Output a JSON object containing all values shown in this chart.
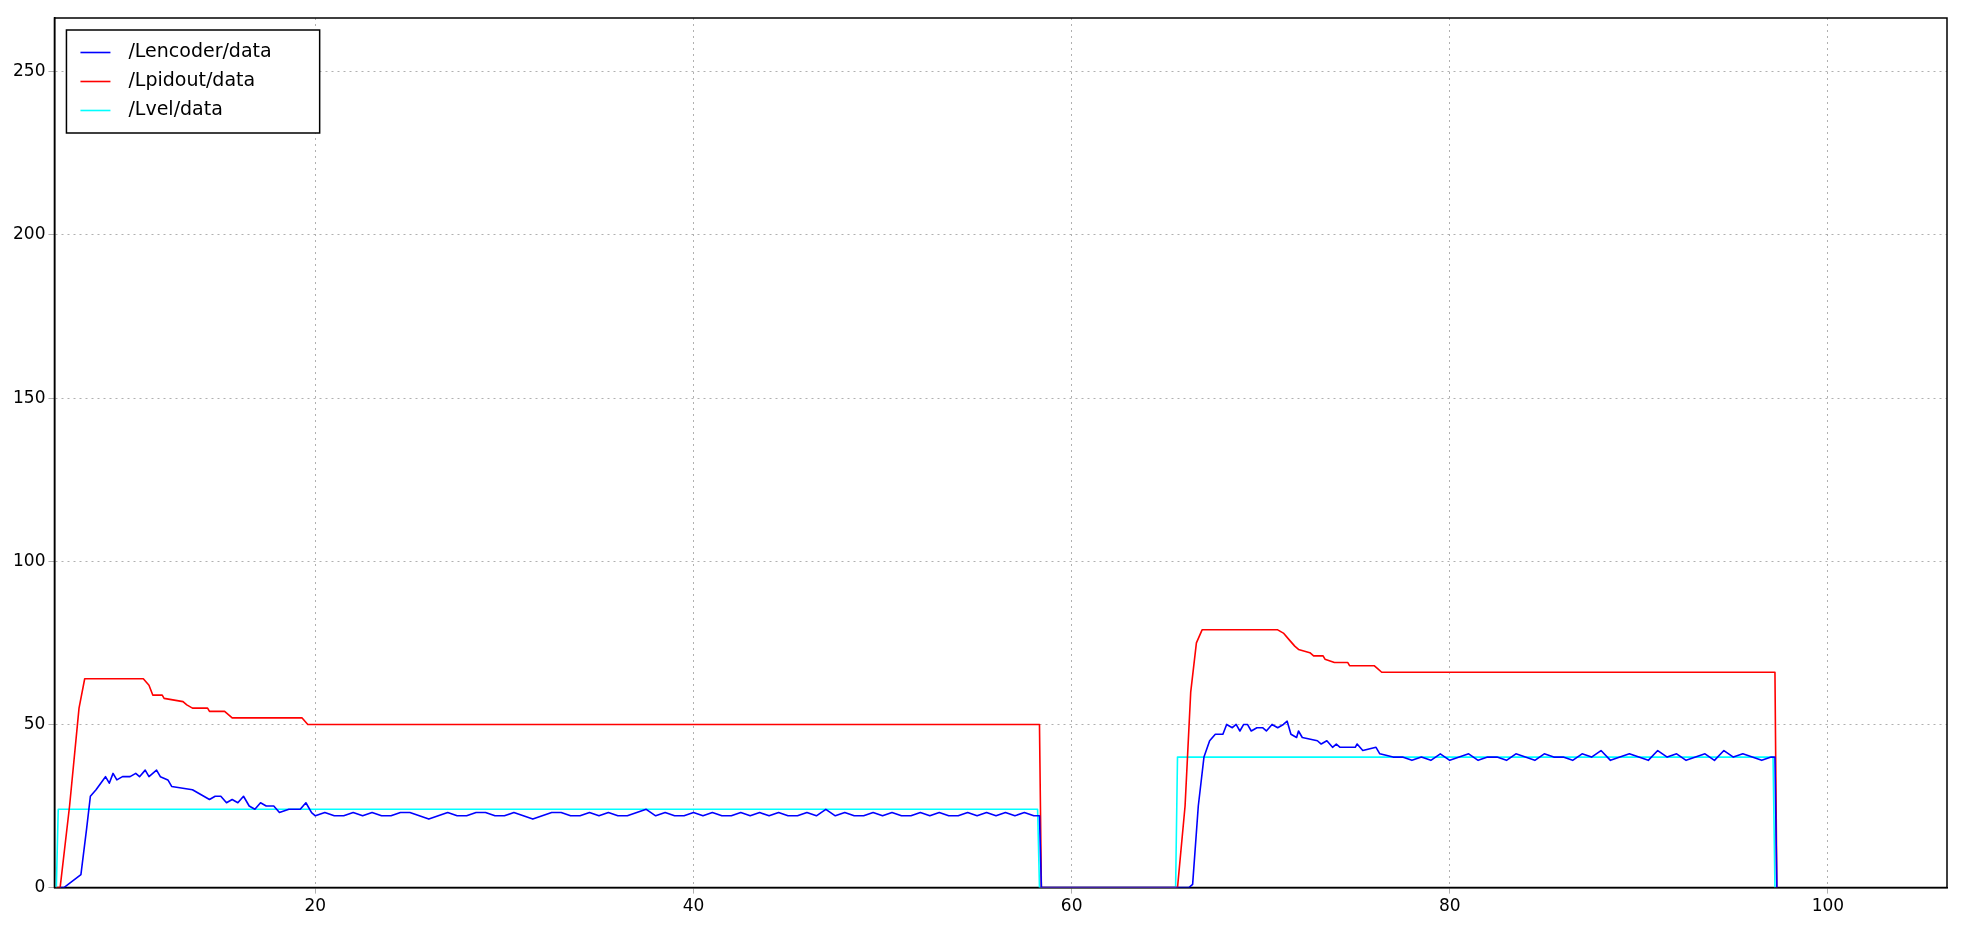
{
  "chart_data": {
    "type": "line",
    "xlim": [
      6.2,
      106.3
    ],
    "ylim": [
      0,
      266.5
    ],
    "xticks": [
      20,
      40,
      60,
      80,
      100
    ],
    "yticks": [
      0,
      50,
      100,
      150,
      200,
      250
    ],
    "grid": true,
    "legend": "top left",
    "series": [
      {
        "name": "/Lencoder/data",
        "color": "#0000ff",
        "x": [
          6.5,
          6.7,
          7.6,
          7.9,
          8.1,
          8.4,
          8.9,
          9.1,
          9.3,
          9.5,
          9.8,
          10.2,
          10.5,
          10.7,
          11.0,
          11.2,
          11.4,
          11.6,
          11.8,
          12.2,
          12.4,
          13.5,
          13.8,
          14.1,
          14.4,
          14.7,
          15.0,
          15.3,
          15.6,
          15.9,
          16.2,
          16.5,
          16.8,
          17.1,
          17.4,
          17.8,
          18.1,
          18.6,
          19.2,
          19.5,
          19.8,
          20,
          20.5,
          21,
          21.5,
          22,
          22.5,
          23,
          23.5,
          24,
          24.5,
          25,
          25.5,
          26,
          26.5,
          27,
          27.5,
          28,
          28.5,
          29,
          29.5,
          30,
          30.5,
          31,
          31.5,
          32,
          32.5,
          33,
          33.5,
          34,
          34.5,
          35,
          35.5,
          36,
          36.5,
          37,
          37.5,
          38,
          38.5,
          39,
          39.5,
          40,
          40.5,
          41,
          41.5,
          42,
          42.5,
          43,
          43.5,
          44,
          44.5,
          45,
          45.5,
          46,
          46.5,
          47,
          47.5,
          48,
          48.5,
          49,
          49.5,
          50,
          50.5,
          51,
          51.5,
          52,
          52.5,
          53,
          53.5,
          54,
          54.5,
          55,
          55.5,
          56,
          56.5,
          57,
          57.5,
          58,
          58.3,
          58.4,
          66.2,
          66.4,
          66.7,
          67.0,
          67.3,
          67.6,
          68.0,
          68.2,
          68.5,
          68.7,
          68.9,
          69.1,
          69.3,
          69.5,
          69.8,
          70.1,
          70.3,
          70.6,
          70.9,
          71.2,
          71.4,
          71.6,
          71.9,
          72.0,
          72.2,
          73.0,
          73.2,
          73.5,
          73.8,
          74.0,
          74.2,
          75.0,
          75.1,
          75.4,
          76.1,
          76.3,
          77.0,
          77.5,
          78.0,
          78.5,
          79,
          79.5,
          80,
          80.5,
          81,
          81.5,
          82,
          82.5,
          83,
          83.5,
          84,
          84.5,
          85,
          85.5,
          86,
          86.5,
          87,
          87.5,
          88,
          88.5,
          89,
          89.5,
          90,
          90.5,
          91,
          91.5,
          92,
          92.5,
          93,
          93.5,
          94,
          94.5,
          95,
          95.5,
          96,
          96.5,
          97,
          97.2,
          97.3
        ],
        "values": [
          0,
          0,
          4,
          18,
          28,
          30,
          34,
          32,
          35,
          33,
          34,
          34,
          35,
          34,
          36,
          34,
          35,
          36,
          34,
          33,
          31,
          30,
          29,
          28,
          27,
          28,
          28,
          26,
          27,
          26,
          28,
          25,
          24,
          26,
          25,
          25,
          23,
          24,
          24,
          26,
          23,
          22,
          23,
          22,
          22,
          23,
          22,
          23,
          22,
          22,
          23,
          23,
          22,
          21,
          22,
          23,
          22,
          22,
          23,
          23,
          22,
          22,
          23,
          22,
          21,
          22,
          23,
          23,
          22,
          22,
          23,
          22,
          23,
          22,
          22,
          23,
          24,
          22,
          23,
          22,
          22,
          23,
          22,
          23,
          22,
          22,
          23,
          22,
          23,
          22,
          23,
          22,
          22,
          23,
          22,
          24,
          22,
          23,
          22,
          22,
          23,
          22,
          23,
          22,
          22,
          23,
          22,
          23,
          22,
          22,
          23,
          22,
          23,
          22,
          23,
          22,
          23,
          22,
          22,
          0,
          0,
          1,
          25,
          40,
          45,
          47,
          47,
          50,
          49,
          50,
          48,
          50,
          50,
          48,
          49,
          49,
          48,
          50,
          49,
          50,
          51,
          47,
          46,
          48,
          46,
          45,
          44,
          45,
          43,
          44,
          43,
          43,
          44,
          42,
          43,
          41,
          40,
          40,
          39,
          40,
          39,
          41,
          39,
          40,
          41,
          39,
          40,
          40,
          39,
          41,
          40,
          39,
          41,
          40,
          40,
          39,
          41,
          40,
          42,
          39,
          40,
          41,
          40,
          39,
          42,
          40,
          41,
          39,
          40,
          41,
          39,
          42,
          40,
          41,
          40,
          39,
          40,
          40,
          0
        ]
      },
      {
        "name": "/Lpidout/data",
        "color": "#ff0000",
        "x": [
          6.3,
          6.5,
          7.0,
          7.5,
          7.8,
          10.9,
          11.2,
          11.4,
          11.9,
          12.0,
          13.0,
          13.2,
          13.5,
          14.3,
          14.4,
          15.2,
          15.6,
          19.3,
          19.6,
          58.3,
          58.4,
          65.6,
          66.0,
          66.3,
          66.6,
          66.9,
          70.9,
          71.2,
          71.5,
          71.8,
          72.0,
          72.6,
          72.8,
          73.3,
          73.4,
          73.9,
          74.6,
          74.7,
          76.0,
          76.2,
          76.4,
          97.2,
          97.3
        ],
        "values": [
          0,
          0,
          25,
          55,
          64,
          64,
          62,
          59,
          59,
          58,
          57,
          56,
          55,
          55,
          54,
          54,
          52,
          52,
          50,
          50,
          0,
          0,
          25,
          60,
          75,
          79,
          79,
          78,
          76,
          74,
          73,
          72,
          71,
          71,
          70,
          69,
          69,
          68,
          68,
          67,
          66,
          66,
          0
        ]
      },
      {
        "name": "/Lvel/data",
        "color": "#00ffff",
        "x": [
          6.3,
          6.4,
          58.2,
          58.3,
          65.5,
          65.6,
          97.1,
          97.2
        ],
        "values": [
          0,
          24,
          24,
          0,
          0,
          40,
          40,
          0
        ]
      }
    ]
  }
}
